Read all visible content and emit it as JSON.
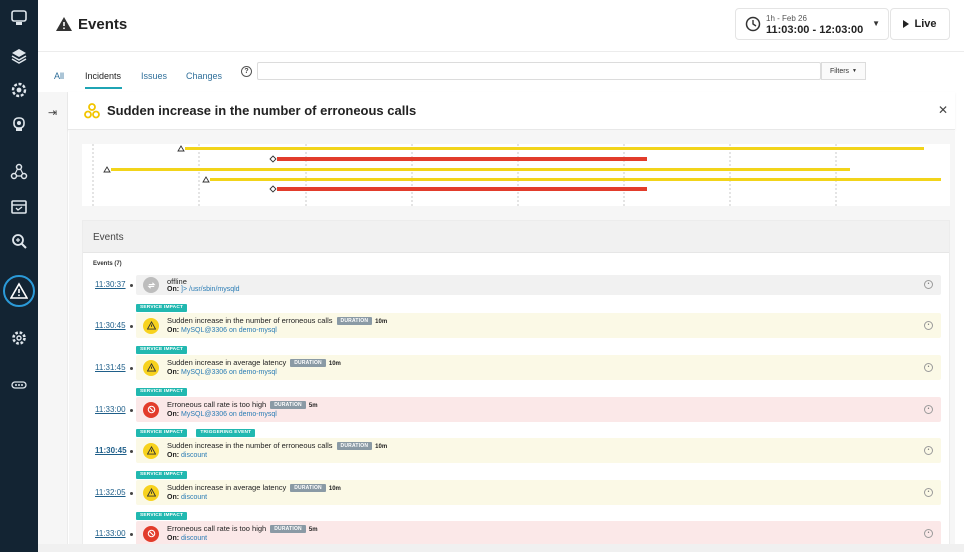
{
  "header": {
    "title": "Events",
    "timeframe": {
      "range_label": "1h - Feb 26",
      "time_label": "11:03:00 - 12:03:00"
    },
    "live_label": "Live"
  },
  "tabs": [
    {
      "label": "All"
    },
    {
      "label": "Incidents"
    },
    {
      "label": "Issues"
    },
    {
      "label": "Changes"
    }
  ],
  "search": {
    "value": "",
    "placeholder": ""
  },
  "filters_label": "Filters",
  "incident": {
    "title": "Sudden increase in the number of erroneous calls"
  },
  "colors": {
    "warning": "#f7d21e",
    "error": "#e23c2b",
    "accent": "#1fa4b4",
    "tag": "#21b8b0",
    "rail": "#132433"
  },
  "events_panel": {
    "title": "Events",
    "count_label": "Events (7)",
    "rows": [
      {
        "time": "11:30:37",
        "status": "gray",
        "tags": [],
        "title": "offline",
        "duration_label": "",
        "duration": "",
        "on_label": "On:",
        "on_value": "]> /usr/sbin/mysqld"
      },
      {
        "time": "11:30:45",
        "status": "yellow",
        "tags": [
          "SERVICE IMPACT"
        ],
        "title": "Sudden increase in the number of erroneous calls",
        "duration_label": "DURATION",
        "duration": "10m",
        "on_label": "On:",
        "on_value": "MySQL@3306 on demo-mysql"
      },
      {
        "time": "11:31:45",
        "status": "yellow",
        "tags": [
          "SERVICE IMPACT"
        ],
        "title": "Sudden increase in average latency",
        "duration_label": "DURATION",
        "duration": "10m",
        "on_label": "On:",
        "on_value": "MySQL@3306 on demo-mysql"
      },
      {
        "time": "11:33:00",
        "status": "red",
        "tags": [
          "SERVICE IMPACT"
        ],
        "title": "Erroneous call rate is too high",
        "duration_label": "DURATION",
        "duration": "5m",
        "on_label": "On:",
        "on_value": "MySQL@3306 on demo-mysql"
      },
      {
        "time": "11:30:45",
        "status": "yellow",
        "tags": [
          "SERVICE IMPACT",
          "TRIGGERING EVENT"
        ],
        "title": "Sudden increase in the number of erroneous calls",
        "duration_label": "DURATION",
        "duration": "10m",
        "on_label": "On:",
        "on_value": "discount"
      },
      {
        "time": "11:32:05",
        "status": "yellow",
        "tags": [
          "SERVICE IMPACT"
        ],
        "title": "Sudden increase in average latency",
        "duration_label": "DURATION",
        "duration": "10m",
        "on_label": "On:",
        "on_value": "discount"
      },
      {
        "time": "11:33:00",
        "status": "red",
        "tags": [
          "SERVICE IMPACT"
        ],
        "title": "Erroneous call rate is too high",
        "duration_label": "DURATION",
        "duration": "5m",
        "on_label": "On:",
        "on_value": "discount"
      }
    ]
  },
  "rail_icons": [
    "monitor-icon",
    "layers-icon",
    "gear-circle-icon",
    "robot-icon",
    "nodes-icon",
    "calendar-icon",
    "search-zoom-icon",
    "events-warning-icon",
    "settings-icon",
    "more-icon"
  ]
}
